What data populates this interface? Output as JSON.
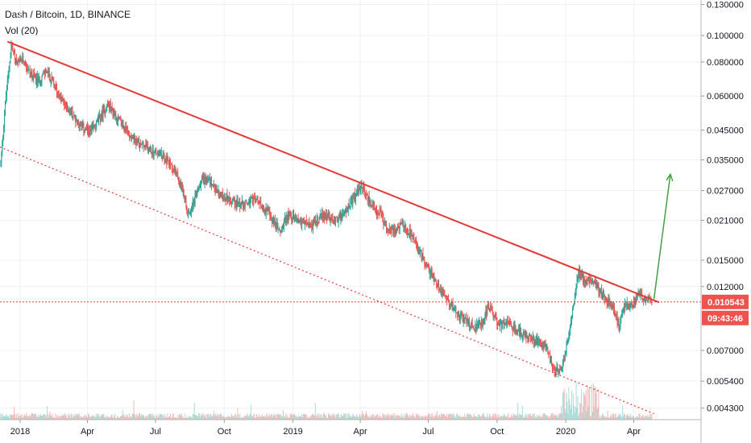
{
  "legend": {
    "title": "Dash / Bitcoin, 1D, BINANCE",
    "indicator": "Vol (20)"
  },
  "colors": {
    "up": "#26a69a",
    "down": "#ef5350",
    "trend": "#e53935",
    "projection": "#43a047",
    "grid": "#eef0f3",
    "axis_text": "#131722",
    "price_tag": "#ef5350",
    "up_volume": "#a8dcd6",
    "down_volume": "#f7b7b4"
  },
  "price_tag": {
    "price": "0.010543",
    "countdown": "09:43:46"
  },
  "chart_data": {
    "type": "candlestick",
    "symbol": "DASH/BTC",
    "interval": "1D",
    "exchange": "BINANCE",
    "y_scale": "log",
    "ylim": [
      0.0039,
      0.135
    ],
    "xlim": [
      "2017-12-05",
      "2020-06-30"
    ],
    "grid": true,
    "x_ticks": [
      "2018",
      "Apr",
      "Jul",
      "Oct",
      "2019",
      "Apr",
      "Jul",
      "Oct",
      "2020",
      "Apr"
    ],
    "x_tick_dates": [
      "2018-01-01",
      "2018-04-01",
      "2018-07-01",
      "2018-10-01",
      "2019-01-01",
      "2019-04-01",
      "2019-07-01",
      "2019-10-01",
      "2020-01-01",
      "2020-04-01"
    ],
    "y_ticks": [
      0.0043,
      0.0054,
      0.007,
      0.012,
      0.015,
      0.021,
      0.027,
      0.035,
      0.045,
      0.06,
      0.08,
      0.1,
      0.13
    ],
    "y_tick_labels": [
      "0.004300",
      "0.005400",
      "0.007000",
      "0.012000",
      "0.015000",
      "0.021000",
      "0.027000",
      "0.035000",
      "0.045000",
      "0.060000",
      "0.080000",
      "0.100000",
      "0.130000"
    ],
    "close_path": [
      [
        "2017-12-06",
        0.034
      ],
      [
        "2017-12-12",
        0.056
      ],
      [
        "2017-12-20",
        0.092
      ],
      [
        "2017-12-28",
        0.078
      ],
      [
        "2018-01-05",
        0.082
      ],
      [
        "2018-01-15",
        0.072
      ],
      [
        "2018-01-25",
        0.068
      ],
      [
        "2018-02-05",
        0.074
      ],
      [
        "2018-02-15",
        0.066
      ],
      [
        "2018-02-25",
        0.058
      ],
      [
        "2018-03-10",
        0.052
      ],
      [
        "2018-03-25",
        0.046
      ],
      [
        "2018-04-05",
        0.044
      ],
      [
        "2018-04-18",
        0.05
      ],
      [
        "2018-04-28",
        0.056
      ],
      [
        "2018-05-10",
        0.05
      ],
      [
        "2018-05-25",
        0.044
      ],
      [
        "2018-06-10",
        0.04
      ],
      [
        "2018-06-25",
        0.038
      ],
      [
        "2018-07-10",
        0.036
      ],
      [
        "2018-07-25",
        0.033
      ],
      [
        "2018-08-05",
        0.028
      ],
      [
        "2018-08-14",
        0.022
      ],
      [
        "2018-08-22",
        0.025
      ],
      [
        "2018-09-01",
        0.03
      ],
      [
        "2018-09-12",
        0.029
      ],
      [
        "2018-09-25",
        0.026
      ],
      [
        "2018-10-10",
        0.025
      ],
      [
        "2018-10-25",
        0.024
      ],
      [
        "2018-11-10",
        0.025
      ],
      [
        "2018-11-25",
        0.023
      ],
      [
        "2018-12-05",
        0.021
      ],
      [
        "2018-12-15",
        0.019
      ],
      [
        "2018-12-25",
        0.022
      ],
      [
        "2019-01-10",
        0.021
      ],
      [
        "2019-01-25",
        0.02
      ],
      [
        "2019-02-10",
        0.022
      ],
      [
        "2019-02-25",
        0.021
      ],
      [
        "2019-03-10",
        0.022
      ],
      [
        "2019-03-22",
        0.025
      ],
      [
        "2019-04-03",
        0.028
      ],
      [
        "2019-04-15",
        0.024
      ],
      [
        "2019-04-28",
        0.022
      ],
      [
        "2019-05-10",
        0.019
      ],
      [
        "2019-05-25",
        0.02
      ],
      [
        "2019-06-05",
        0.019
      ],
      [
        "2019-06-20",
        0.016
      ],
      [
        "2019-07-01",
        0.014
      ],
      [
        "2019-07-15",
        0.012
      ],
      [
        "2019-07-30",
        0.0105
      ],
      [
        "2019-08-15",
        0.0092
      ],
      [
        "2019-08-30",
        0.0085
      ],
      [
        "2019-09-10",
        0.0088
      ],
      [
        "2019-09-20",
        0.0102
      ],
      [
        "2019-10-01",
        0.0088
      ],
      [
        "2019-10-20",
        0.0086
      ],
      [
        "2019-11-05",
        0.008
      ],
      [
        "2019-11-20",
        0.0076
      ],
      [
        "2019-12-05",
        0.0072
      ],
      [
        "2019-12-18",
        0.0058
      ],
      [
        "2019-12-28",
        0.0062
      ],
      [
        "2020-01-08",
        0.009
      ],
      [
        "2020-01-18",
        0.0135
      ],
      [
        "2020-01-28",
        0.0125
      ],
      [
        "2020-02-08",
        0.0128
      ],
      [
        "2020-02-20",
        0.011
      ],
      [
        "2020-03-05",
        0.01
      ],
      [
        "2020-03-12",
        0.0085
      ],
      [
        "2020-03-20",
        0.0105
      ],
      [
        "2020-03-30",
        0.0102
      ],
      [
        "2020-04-08",
        0.0112
      ],
      [
        "2020-04-18",
        0.0108
      ],
      [
        "2020-04-25",
        0.0106
      ]
    ],
    "annotations": {
      "resistance_trendline": {
        "from": [
          "2017-12-15",
          0.095
        ],
        "to": [
          "2020-05-05",
          0.0105
        ]
      },
      "support_channel_dotted": {
        "from": [
          "2017-12-05",
          0.039
        ],
        "to": [
          "2020-04-28",
          0.0041
        ]
      },
      "current_price_line": 0.010543,
      "projection_arrow": {
        "from": [
          "2020-04-28",
          0.0108
        ],
        "to": [
          "2020-05-20",
          0.031
        ]
      }
    }
  }
}
